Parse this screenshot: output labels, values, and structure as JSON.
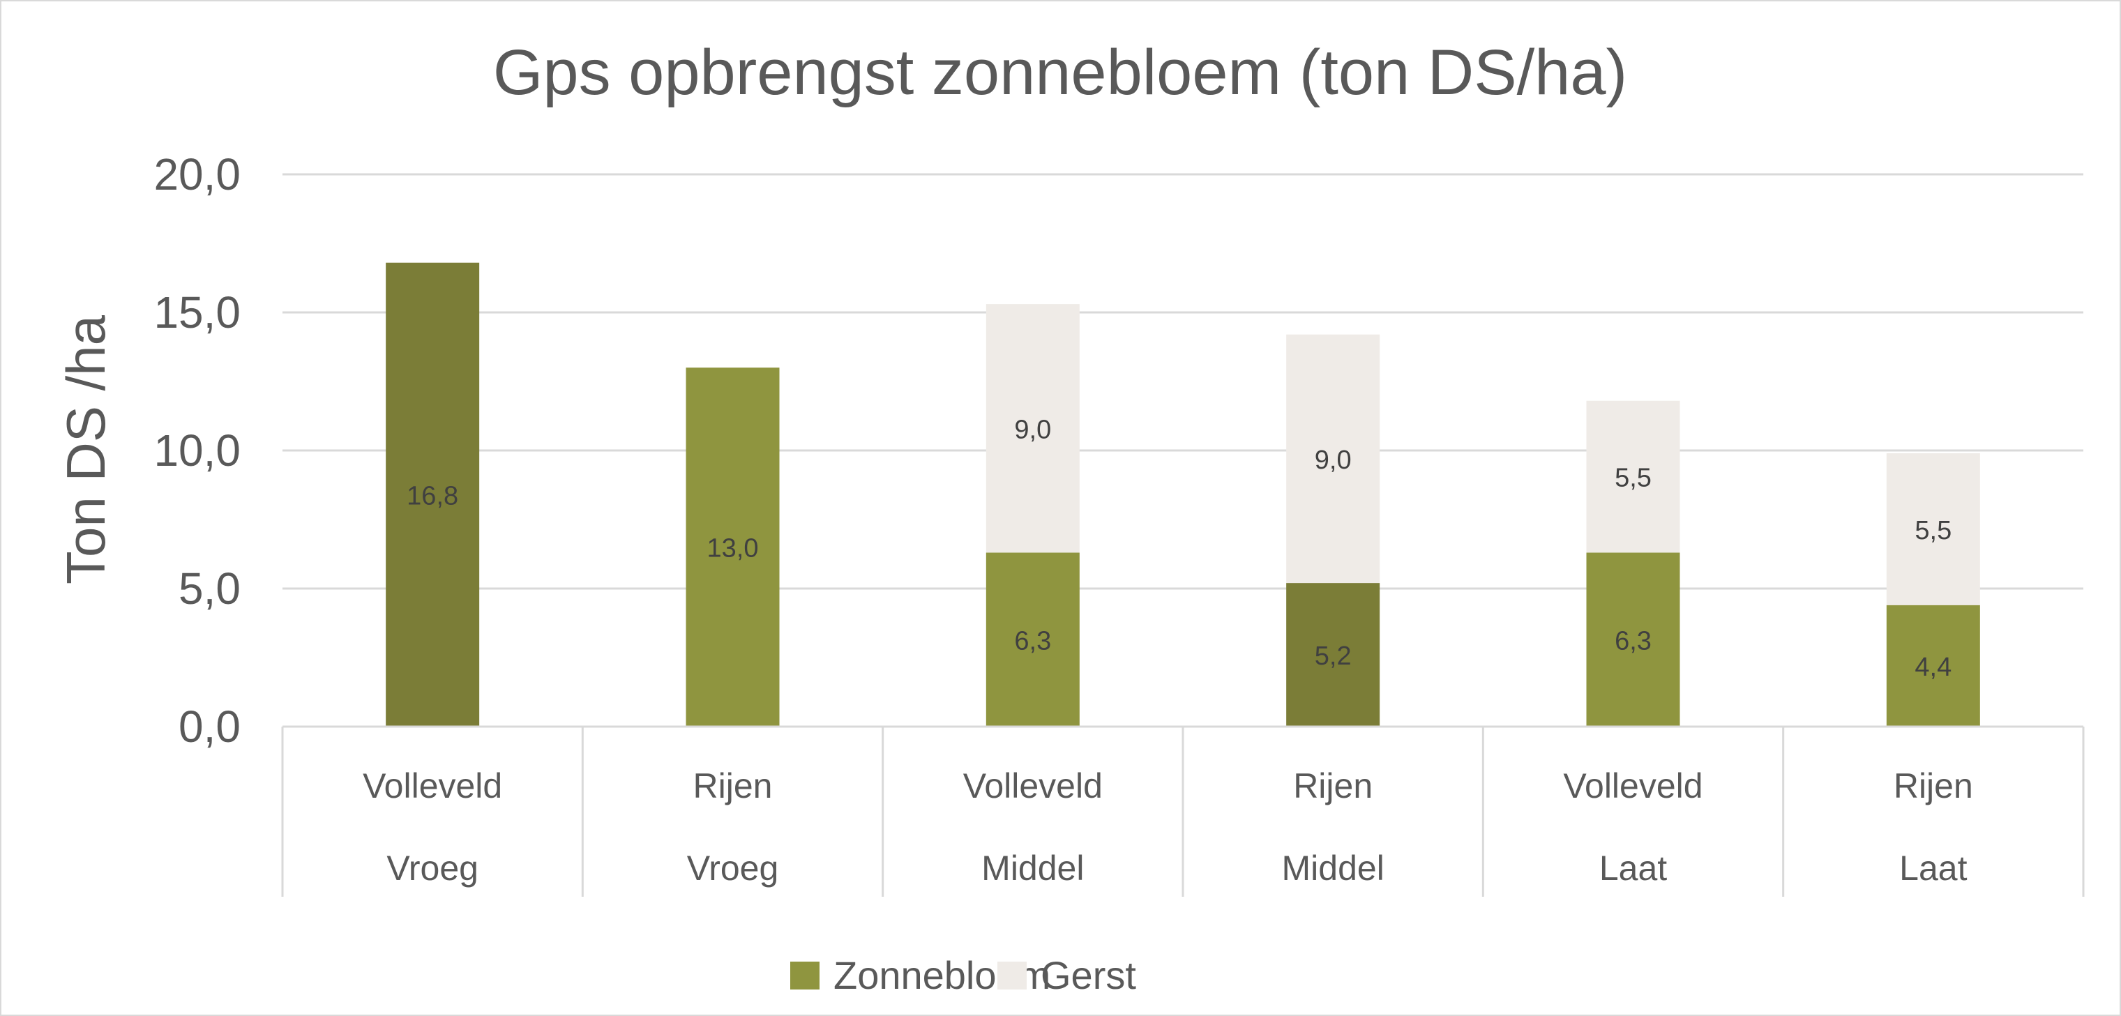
{
  "chart_data": {
    "type": "bar",
    "stacked": true,
    "title": "Gps opbrengst zonnebloem (ton DS/ha)",
    "xlabel": "",
    "ylabel": "Ton DS /ha",
    "ylim": [
      0,
      20
    ],
    "yticks": [
      "0,0",
      "5,0",
      "10,0",
      "15,0",
      "20,0"
    ],
    "grid": true,
    "legend_position": "bottom",
    "categories": [
      {
        "row1": "Volleveld",
        "row2": "Vroeg"
      },
      {
        "row1": "Rijen",
        "row2": "Vroeg"
      },
      {
        "row1": "Volleveld",
        "row2": "Middel"
      },
      {
        "row1": "Rijen",
        "row2": "Middel"
      },
      {
        "row1": "Volleveld",
        "row2": "Laat"
      },
      {
        "row1": "Rijen",
        "row2": "Laat"
      }
    ],
    "series": [
      {
        "name": "Zonnebloem",
        "color": "#8F953F",
        "point_colors": [
          "#7B7D37",
          "#8F953F",
          "#8F953F",
          "#7B7D37",
          "#8F953F",
          "#8F953F"
        ],
        "values": [
          16.8,
          13.0,
          6.3,
          5.2,
          6.3,
          4.4
        ],
        "labels": [
          "16,8",
          "13,0",
          "6,3",
          "5,2",
          "6,3",
          "4,4"
        ]
      },
      {
        "name": "Gerst",
        "color": "#EFEBE7",
        "values": [
          null,
          null,
          9.0,
          9.0,
          5.5,
          5.5
        ],
        "labels": [
          null,
          null,
          "9,0",
          "9,0",
          "5,5",
          "5,5"
        ]
      }
    ]
  }
}
